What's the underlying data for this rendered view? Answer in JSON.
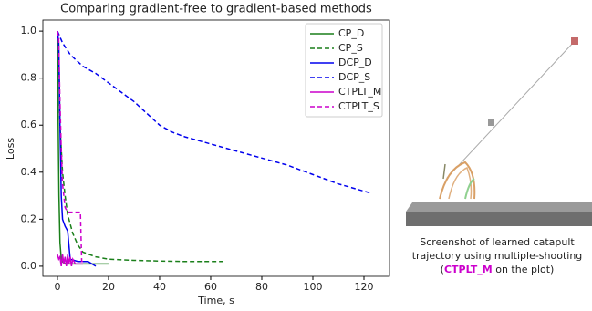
{
  "chart_data": {
    "type": "line",
    "title": "Comparing gradient-free to gradient-based methods",
    "x_label": "Time, s",
    "y_label": "Loss",
    "xlim": [
      -5.7,
      130
    ],
    "ylim": [
      -0.043,
      1.047
    ],
    "xticks": [
      0,
      20,
      40,
      60,
      80,
      100,
      120
    ],
    "yticks": [
      {
        "value": 0,
        "label": "0.0"
      },
      0.2,
      0.4,
      0.6,
      0.8,
      {
        "value": 1,
        "label": "1.0"
      }
    ],
    "legend": "upper right",
    "series": [
      {
        "name": "CP_D",
        "color": "#1a7f1a",
        "linestyle": "solid",
        "x": [
          0,
          0.3,
          0.6,
          1,
          1.5,
          2,
          3,
          5,
          10,
          20
        ],
        "values": [
          1.0,
          0.6,
          0.3,
          0.1,
          0.03,
          0.02,
          0.01,
          0.01,
          0.01,
          0.01
        ]
      },
      {
        "name": "CP_S",
        "color": "#1a7f1a",
        "linestyle": "dashed",
        "x": [
          0.5,
          1,
          2,
          3,
          4,
          6,
          8,
          10,
          15,
          20,
          30,
          40,
          50,
          65
        ],
        "values": [
          0.95,
          0.6,
          0.4,
          0.3,
          0.22,
          0.14,
          0.09,
          0.06,
          0.04,
          0.03,
          0.025,
          0.022,
          0.02,
          0.02
        ]
      },
      {
        "name": "DCP_D",
        "color": "#0000ee",
        "linestyle": "solid",
        "x": [
          0,
          0.5,
          1,
          1.5,
          2,
          3,
          4,
          5,
          8,
          12,
          15
        ],
        "values": [
          1.0,
          0.95,
          0.6,
          0.3,
          0.2,
          0.17,
          0.15,
          0.03,
          0.02,
          0.02,
          0.0
        ]
      },
      {
        "name": "DCP_S",
        "color": "#0000ee",
        "linestyle": "dashed",
        "x": [
          0,
          2,
          5,
          8,
          10,
          15,
          20,
          25,
          30,
          35,
          40,
          45,
          50,
          60,
          70,
          80,
          90,
          100,
          110,
          123
        ],
        "values": [
          1.0,
          0.95,
          0.9,
          0.87,
          0.85,
          0.82,
          0.78,
          0.74,
          0.7,
          0.65,
          0.6,
          0.57,
          0.55,
          0.52,
          0.49,
          0.46,
          0.43,
          0.39,
          0.35,
          0.31
        ]
      },
      {
        "name": "CTPLT_M",
        "color": "#cc00cc",
        "linestyle": "solid",
        "x": [
          0,
          0.5,
          1,
          1.5,
          2,
          2.5,
          3,
          3.5,
          4,
          4.5,
          5,
          5.5,
          6,
          7,
          8,
          10
        ],
        "values": [
          0.05,
          0.03,
          0.04,
          0.0,
          0.05,
          0.01,
          0.04,
          0.0,
          0.05,
          0.01,
          0.04,
          0.0,
          0.03,
          0.01,
          0.01,
          0.01
        ]
      },
      {
        "name": "CTPLT_S",
        "color": "#cc00cc",
        "linestyle": "dashed",
        "x": [
          0,
          0.5,
          1,
          1.5,
          2,
          3,
          4,
          5,
          6,
          7,
          8,
          9,
          9.5,
          10
        ],
        "values": [
          1.0,
          0.97,
          0.7,
          0.5,
          0.35,
          0.25,
          0.23,
          0.23,
          0.23,
          0.23,
          0.23,
          0.23,
          0.02,
          0.02
        ]
      }
    ]
  },
  "caption": {
    "line1": "Screenshot of learned catapult",
    "line2": "trajectory using multiple-shooting",
    "open": "(",
    "highlight": "CTPLT_M",
    "rest": " on the plot)"
  }
}
